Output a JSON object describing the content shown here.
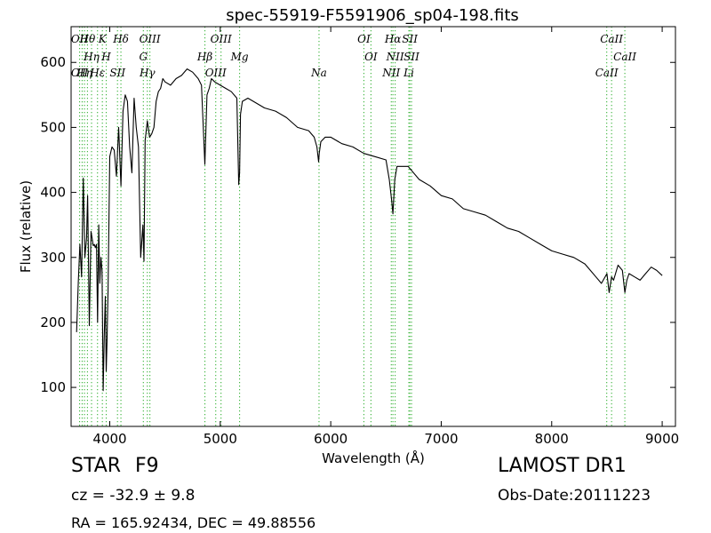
{
  "chart_data": {
    "type": "line",
    "title": "spec-55919-F5591906_sp04-198.fits",
    "xlabel": "Wavelength (Å)",
    "ylabel": "Flux (relative)",
    "xlim": [
      3650,
      9120
    ],
    "ylim": [
      40,
      655
    ],
    "xticks": [
      4000,
      5000,
      6000,
      7000,
      8000,
      9000
    ],
    "yticks": [
      100,
      200,
      300,
      400,
      500,
      600
    ],
    "grid": false,
    "series": [
      {
        "color": "#000000",
        "x": [
          3700,
          3715,
          3730,
          3745,
          3760,
          3775,
          3790,
          3800,
          3815,
          3830,
          3840,
          3850,
          3860,
          3870,
          3880,
          3890,
          3900,
          3910,
          3920,
          3930,
          3940,
          3950,
          3960,
          3968,
          3975,
          3985,
          4000,
          4020,
          4040,
          4060,
          4080,
          4101,
          4120,
          4140,
          4160,
          4180,
          4200,
          4220,
          4240,
          4260,
          4280,
          4300,
          4310,
          4320,
          4340,
          4360,
          4380,
          4400,
          4420,
          4440,
          4460,
          4480,
          4500,
          4550,
          4600,
          4650,
          4700,
          4750,
          4800,
          4830,
          4861,
          4880,
          4900,
          4920,
          4950,
          5000,
          5050,
          5100,
          5150,
          5167,
          5175,
          5183,
          5200,
          5250,
          5300,
          5400,
          5500,
          5600,
          5700,
          5800,
          5850,
          5875,
          5890,
          5896,
          5910,
          5950,
          6000,
          6100,
          6200,
          6300,
          6400,
          6500,
          6530,
          6550,
          6563,
          6580,
          6600,
          6700,
          6800,
          6900,
          7000,
          7100,
          7200,
          7300,
          7400,
          7500,
          7600,
          7700,
          7800,
          7900,
          8000,
          8100,
          8200,
          8300,
          8350,
          8400,
          8450,
          8500,
          8520,
          8542,
          8560,
          8600,
          8640,
          8662,
          8680,
          8700,
          8750,
          8800,
          8850,
          8900,
          8950,
          9000
        ],
        "y": [
          185,
          262,
          320,
          270,
          422,
          300,
          330,
          395,
          195,
          340,
          330,
          318,
          320,
          315,
          320,
          200,
          350,
          260,
          300,
          280,
          95,
          180,
          240,
          125,
          170,
          250,
          455,
          470,
          465,
          425,
          500,
          410,
          525,
          550,
          540,
          470,
          430,
          545,
          500,
          470,
          300,
          350,
          294,
          480,
          510,
          485,
          490,
          500,
          540,
          555,
          560,
          575,
          570,
          565,
          575,
          580,
          590,
          585,
          575,
          565,
          443,
          550,
          560,
          575,
          570,
          565,
          560,
          555,
          545,
          412,
          430,
          520,
          540,
          545,
          540,
          530,
          525,
          515,
          500,
          495,
          485,
          470,
          447,
          460,
          478,
          485,
          485,
          475,
          470,
          460,
          455,
          450,
          420,
          390,
          367,
          420,
          440,
          440,
          420,
          410,
          395,
          390,
          375,
          370,
          365,
          355,
          345,
          340,
          330,
          320,
          310,
          305,
          300,
          290,
          280,
          270,
          260,
          275,
          246,
          270,
          265,
          288,
          280,
          246,
          265,
          275,
          270,
          265,
          275,
          285,
          280,
          272
        ]
      }
    ],
    "line_markers": [
      {
        "x": 3727,
        "color": "#3cb43c",
        "labels": [
          "OII",
          "OII"
        ]
      },
      {
        "x": 3750,
        "color": "#3cb43c",
        "labels": [
          ""
        ]
      },
      {
        "x": 3771,
        "color": "#3cb43c",
        "labels": [
          "Hη"
        ]
      },
      {
        "x": 3798,
        "color": "#3cb43c",
        "labels": [
          "Hθ"
        ]
      },
      {
        "x": 3835,
        "color": "#3cb43c",
        "labels": [
          "Hη"
        ]
      },
      {
        "x": 3889,
        "color": "#3cb43c",
        "labels": [
          "Hε"
        ]
      },
      {
        "x": 3933,
        "color": "#3cb43c",
        "labels": [
          "K"
        ]
      },
      {
        "x": 3968,
        "color": "#3cb43c",
        "labels": [
          "H"
        ]
      },
      {
        "x": 4070,
        "color": "#3cb43c",
        "labels": [
          "SII"
        ]
      },
      {
        "x": 4101,
        "color": "#3cb43c",
        "labels": [
          "Hδ"
        ]
      },
      {
        "x": 4304,
        "color": "#3cb43c",
        "labels": [
          "G"
        ]
      },
      {
        "x": 4340,
        "color": "#3cb43c",
        "labels": [
          "Hγ"
        ]
      },
      {
        "x": 4363,
        "color": "#3cb43c",
        "labels": [
          "OIII"
        ]
      },
      {
        "x": 4861,
        "color": "#3cb43c",
        "labels": [
          "Hβ"
        ]
      },
      {
        "x": 4959,
        "color": "#3cb43c",
        "labels": [
          "OIII"
        ]
      },
      {
        "x": 5007,
        "color": "#3cb43c",
        "labels": [
          "OIII"
        ]
      },
      {
        "x": 5175,
        "color": "#3cb43c",
        "labels": [
          "Mg"
        ]
      },
      {
        "x": 5894,
        "color": "#3cb43c",
        "labels": [
          "Na"
        ]
      },
      {
        "x": 6300,
        "color": "#3cb43c",
        "labels": [
          "OI"
        ]
      },
      {
        "x": 6364,
        "color": "#3cb43c",
        "labels": [
          "OI"
        ]
      },
      {
        "x": 6548,
        "color": "#3cb43c",
        "labels": [
          "NII"
        ]
      },
      {
        "x": 6563,
        "color": "#3cb43c",
        "labels": [
          "Hα"
        ]
      },
      {
        "x": 6583,
        "color": "#3cb43c",
        "labels": [
          "NII"
        ]
      },
      {
        "x": 6707,
        "color": "#3cb43c",
        "labels": [
          "Li"
        ]
      },
      {
        "x": 6716,
        "color": "#3cb43c",
        "labels": [
          "SII"
        ]
      },
      {
        "x": 6731,
        "color": "#3cb43c",
        "labels": [
          "SII"
        ]
      },
      {
        "x": 8498,
        "color": "#3cb43c",
        "labels": [
          "CaII"
        ]
      },
      {
        "x": 8542,
        "color": "#3cb43c",
        "labels": [
          "CaII"
        ]
      },
      {
        "x": 8662,
        "color": "#3cb43c",
        "labels": [
          "CaII"
        ]
      }
    ]
  },
  "info": {
    "object_class": "STAR",
    "subclass": "F9",
    "survey": "LAMOST DR1",
    "redshift": "cz = -32.9 ± 9.8",
    "obs_date": "Obs-Date:20111223",
    "coords": "RA = 165.92434, DEC = 49.88556"
  }
}
